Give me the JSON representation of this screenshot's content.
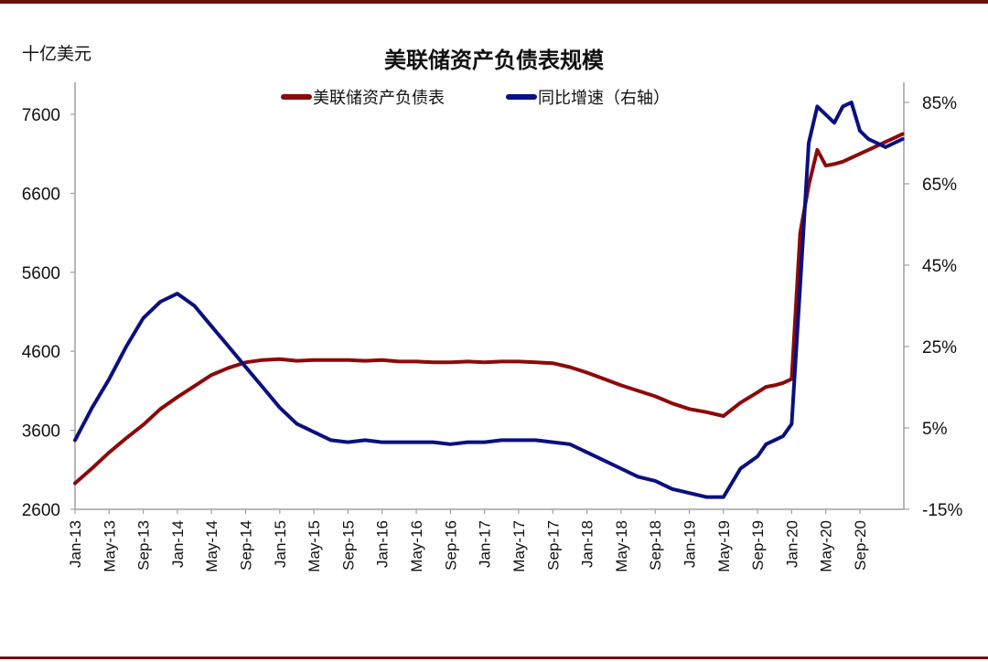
{
  "chart_data": {
    "type": "line",
    "title": "美联储资产负债表规模",
    "ylabel": "十亿美元",
    "y2label": "同比增速（右轴）",
    "ylim": [
      2600,
      7600
    ],
    "y2lim": [
      -15,
      85
    ],
    "yticks": [
      2600,
      3600,
      4600,
      5600,
      6600,
      7600
    ],
    "y2ticks": [
      "-15%",
      "5%",
      "25%",
      "45%",
      "65%",
      "85%"
    ],
    "y2tick_values": [
      -15,
      5,
      25,
      45,
      65,
      85
    ],
    "xticks": [
      "Jan-13",
      "May-13",
      "Sep-13",
      "Jan-14",
      "May-14",
      "Sep-14",
      "Jan-15",
      "May-15",
      "Sep-15",
      "Jan-16",
      "May-16",
      "Sep-16",
      "Jan-17",
      "May-17",
      "Sep-17",
      "Jan-18",
      "May-18",
      "Sep-18",
      "Jan-19",
      "May-19",
      "Sep-19",
      "Jan-20",
      "May-20",
      "Sep-20"
    ],
    "grid": false,
    "legend_position": "top",
    "x_months": [
      0,
      2,
      4,
      6,
      8,
      10,
      12,
      14,
      16,
      18,
      20,
      22,
      24,
      26,
      28,
      30,
      32,
      34,
      36,
      38,
      40,
      42,
      44,
      46,
      48,
      50,
      52,
      54,
      56,
      58,
      60,
      62,
      64,
      66,
      68,
      70,
      72,
      74,
      76,
      78,
      80,
      81,
      82,
      83,
      84,
      85,
      86,
      87,
      88,
      89,
      90,
      91,
      92,
      93,
      94,
      95,
      96,
      97
    ],
    "series": [
      {
        "name": "美联储资产负债表",
        "axis": "left",
        "color": "#8b0a0a",
        "values": [
          2930,
          3120,
          3320,
          3500,
          3670,
          3870,
          4020,
          4160,
          4300,
          4390,
          4460,
          4490,
          4500,
          4480,
          4490,
          4490,
          4490,
          4480,
          4490,
          4470,
          4470,
          4460,
          4460,
          4470,
          4460,
          4470,
          4470,
          4460,
          4450,
          4400,
          4330,
          4250,
          4170,
          4100,
          4030,
          3940,
          3870,
          3830,
          3780,
          3950,
          4080,
          4150,
          4170,
          4200,
          4250,
          6100,
          6700,
          7150,
          6950,
          6970,
          7000,
          7050,
          7100,
          7150,
          7200,
          7250,
          7300,
          7350
        ]
      },
      {
        "name": "同比增速（右轴）",
        "axis": "right",
        "color": "#0a1080",
        "values": [
          2,
          10,
          17,
          25,
          32,
          36,
          38,
          35,
          30,
          25,
          20,
          15,
          10,
          6,
          4,
          2,
          1.5,
          2,
          1.5,
          1.5,
          1.5,
          1.5,
          1,
          1.5,
          1.5,
          2,
          2,
          2,
          1.5,
          1,
          -1,
          -3,
          -5,
          -7,
          -8,
          -10,
          -11,
          -12,
          -12,
          -5,
          -2,
          1,
          2,
          3,
          6,
          40,
          75,
          84,
          82,
          80,
          84,
          85,
          78,
          76,
          75,
          74,
          75,
          76
        ]
      }
    ]
  },
  "header": {
    "unit_label": "十亿美元",
    "title": "美联储资产负债表规模"
  },
  "legend": {
    "items": [
      {
        "label": "美联储资产负债表",
        "color": "#8b0a0a"
      },
      {
        "label": "同比增速（右轴）",
        "color": "#0a1080"
      }
    ]
  },
  "colors": {
    "rule": "#6b0f12",
    "axis": "#a0a0a0"
  }
}
